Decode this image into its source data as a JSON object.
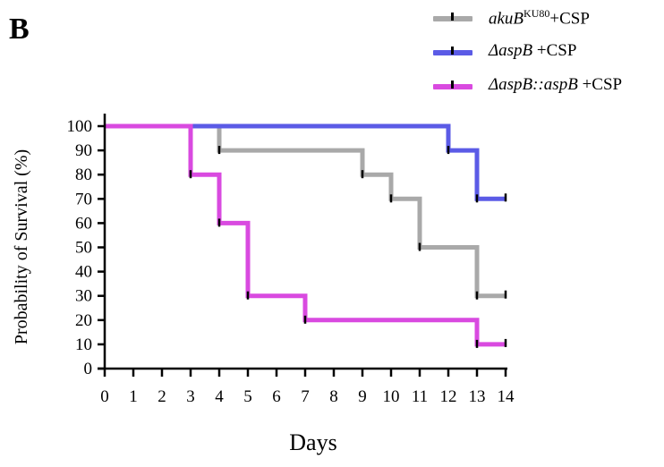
{
  "panel_label": "B",
  "legend": [
    {
      "prefix": "akuB",
      "superscript": "KU80",
      "suffix": "+CSP"
    },
    {
      "prefix": "ΔaspB",
      "superscript": "",
      "suffix": " +CSP"
    },
    {
      "prefix": "ΔaspB::aspB",
      "superscript": "",
      "suffix": " +CSP"
    }
  ],
  "chart_data": {
    "type": "line",
    "step": true,
    "title": "",
    "xlabel": "Days",
    "ylabel": "Probability of Survival (%)",
    "xlim": [
      0,
      14
    ],
    "ylim": [
      0,
      100
    ],
    "xticks": [
      "0",
      "1",
      "2",
      "3",
      "4",
      "5",
      "6",
      "7",
      "8",
      "9",
      "10",
      "11",
      "12",
      "13",
      "14"
    ],
    "yticks": [
      "0",
      "10",
      "20",
      "30",
      "40",
      "50",
      "60",
      "70",
      "80",
      "90",
      "100"
    ],
    "grid": false,
    "legend_position": "top-right",
    "series": [
      {
        "name": "akuBKU80+CSP",
        "color": "#a9a9a9",
        "x": [
          0,
          4,
          9,
          10,
          11,
          13,
          14
        ],
        "y": [
          100,
          90,
          80,
          70,
          50,
          30,
          30
        ],
        "censor_x": [
          14
        ],
        "censor_y": [
          30
        ]
      },
      {
        "name": "ΔaspB +CSP",
        "color": "#5b5be6",
        "x": [
          0,
          12,
          13,
          14
        ],
        "y": [
          100,
          90,
          70,
          70
        ],
        "censor_x": [
          14
        ],
        "censor_y": [
          70
        ]
      },
      {
        "name": "ΔaspB::aspB +CSP",
        "color": "#d94ae0",
        "x": [
          0,
          3,
          4,
          5,
          7,
          13,
          14
        ],
        "y": [
          100,
          80,
          60,
          30,
          20,
          10,
          10
        ],
        "censor_x": [
          14
        ],
        "censor_y": [
          10
        ]
      }
    ]
  }
}
